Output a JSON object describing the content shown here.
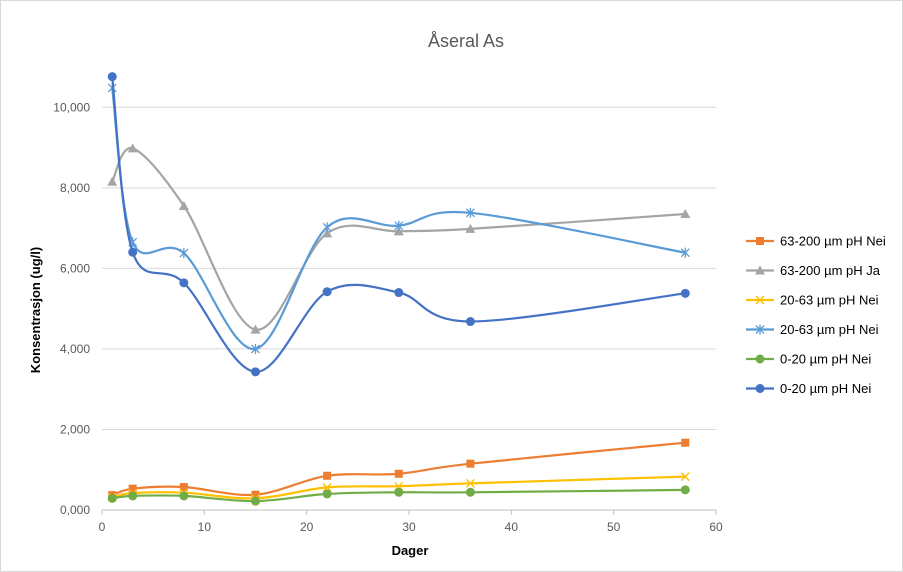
{
  "chart_data": {
    "type": "line",
    "title": "Åseral As",
    "xlabel": "Dager",
    "ylabel": "Konsentrasjon (ug/l)",
    "xlim": [
      0,
      60
    ],
    "ylim": [
      0,
      11000
    ],
    "x_ticks": [
      0,
      10,
      20,
      30,
      40,
      50,
      60
    ],
    "y_ticks": [
      0,
      2000,
      4000,
      6000,
      8000,
      10000
    ],
    "y_tick_labels": [
      "0,000",
      "2,000",
      "4,000",
      "6,000",
      "8,000",
      "10,000"
    ],
    "grid": "horizontal",
    "legend_position": "right",
    "smooth": true,
    "x": [
      1,
      3,
      8,
      15,
      22,
      29,
      36,
      57
    ],
    "series": [
      {
        "name": "63-200 µm pH Nei",
        "color": "#ED7D31",
        "marker": "square",
        "values": [
          370,
          530,
          570,
          380,
          850,
          900,
          1150,
          1670
        ]
      },
      {
        "name": "63-200 µm pH Ja",
        "color": "#A5A5A5",
        "marker": "triangle",
        "values": [
          8150,
          8980,
          7550,
          4480,
          6870,
          6920,
          6980,
          7350
        ]
      },
      {
        "name": "20-63 µm pH Nei",
        "color": "#FFC000",
        "marker": "x",
        "values": [
          320,
          420,
          430,
          290,
          560,
          590,
          660,
          830
        ]
      },
      {
        "name": "20-63 µm pH Nei",
        "color": "#5B9BD5",
        "marker": "star",
        "values": [
          10480,
          6650,
          6380,
          4000,
          7020,
          7060,
          7380,
          6390
        ]
      },
      {
        "name": "0-20 µm pH Nei",
        "color": "#70AD47",
        "marker": "circle",
        "values": [
          290,
          350,
          350,
          220,
          400,
          440,
          440,
          500
        ]
      },
      {
        "name": "0-20 µm pH Nei",
        "color": "#4472C4",
        "marker": "circle",
        "values": [
          10760,
          6400,
          5640,
          3430,
          5420,
          5400,
          4680,
          5380
        ]
      }
    ]
  }
}
